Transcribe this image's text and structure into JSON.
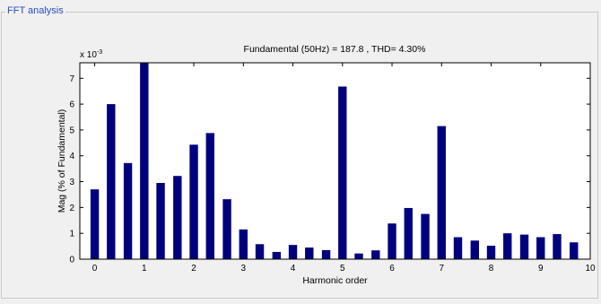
{
  "panel": {
    "title": "FFT analysis"
  },
  "chart_data": {
    "type": "bar",
    "title": "Fundamental (50Hz) = 187.8 , THD= 4.30%",
    "xlabel": "Harmonic order",
    "ylabel": "Mag (% of Fundamental)",
    "exponent_label": "x 10",
    "exponent_power": "-3",
    "xlim": [
      -0.3,
      10
    ],
    "ylim": [
      0,
      7.6
    ],
    "xticks": [
      0,
      1,
      2,
      3,
      4,
      5,
      6,
      7,
      8,
      9,
      10
    ],
    "yticks": [
      0,
      1,
      2,
      3,
      4,
      5,
      6,
      7
    ],
    "bar_width": 0.17,
    "x": [
      0,
      0.33,
      0.67,
      1,
      1.33,
      1.67,
      2,
      2.33,
      2.67,
      3,
      3.33,
      3.67,
      4,
      4.33,
      4.67,
      5,
      5.33,
      5.67,
      6,
      6.33,
      6.67,
      7,
      7.33,
      7.67,
      8,
      8.33,
      8.67,
      9,
      9.33,
      9.67
    ],
    "values": [
      2.7,
      6.0,
      3.72,
      7.6,
      2.95,
      3.22,
      4.43,
      4.88,
      2.32,
      1.15,
      0.58,
      0.28,
      0.55,
      0.45,
      0.35,
      6.68,
      0.22,
      0.34,
      1.38,
      1.98,
      1.75,
      5.15,
      0.85,
      0.72,
      0.52,
      1.0,
      0.95,
      0.85,
      0.97,
      0.65
    ],
    "bar_color": "#00007f",
    "grid": false
  }
}
